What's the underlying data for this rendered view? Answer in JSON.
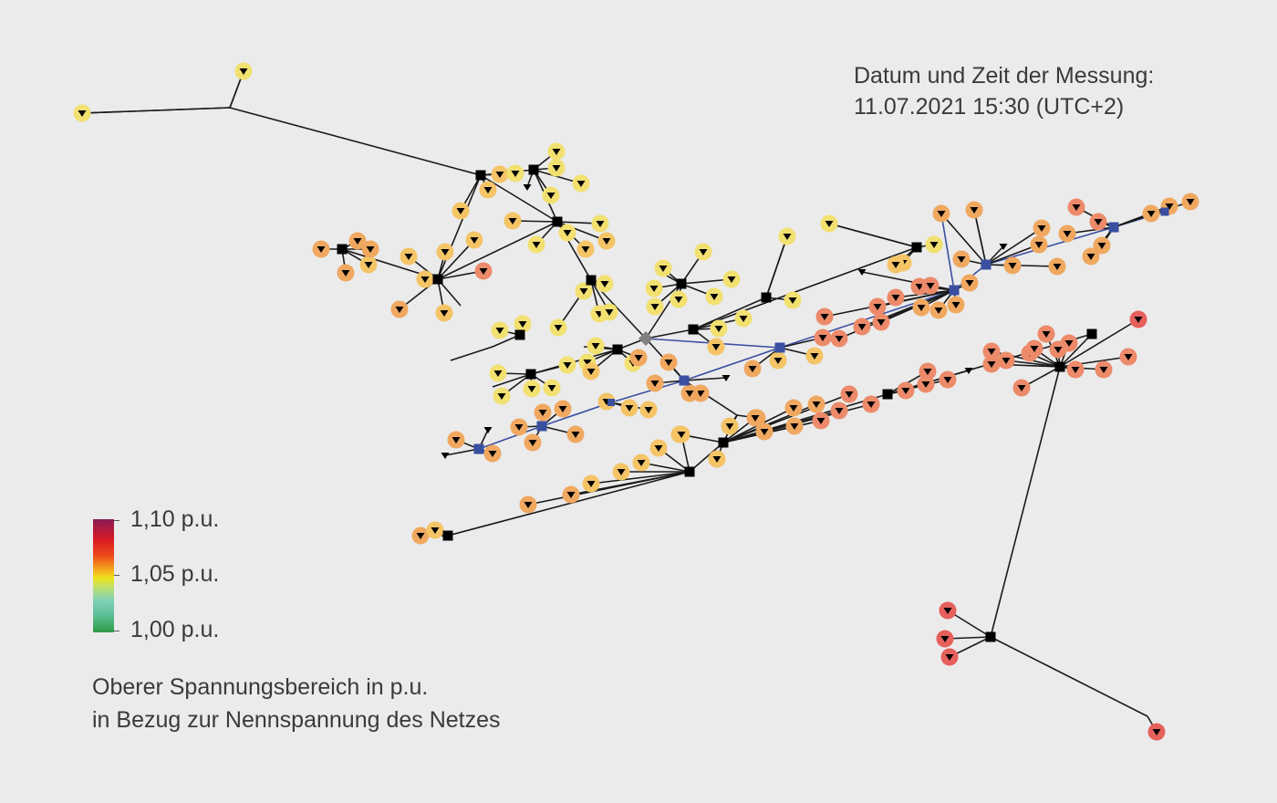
{
  "timestamp": {
    "line1": "Datum und Zeit der Messung:",
    "line2": "11.07.2021 15:30 (UTC+2)"
  },
  "legend": {
    "max_label": "1,10 p.u.",
    "mid_label": "1,05 p.u.",
    "min_label": "1,00 p.u.",
    "caption_line1": "Oberer Spannungsbereich in p.u.",
    "caption_line2": "in Bezug zur Nennspannung des Netzes"
  },
  "colors": {
    "background": "#ebebeb",
    "line_black": "#1a1a1a",
    "line_blue": "#3a4fa0",
    "node_yellow": "#f2e070",
    "node_light_orange": "#f4c466",
    "node_orange": "#f0a860",
    "node_salmon": "#ec8a6a",
    "node_red": "#e6605c"
  }
}
